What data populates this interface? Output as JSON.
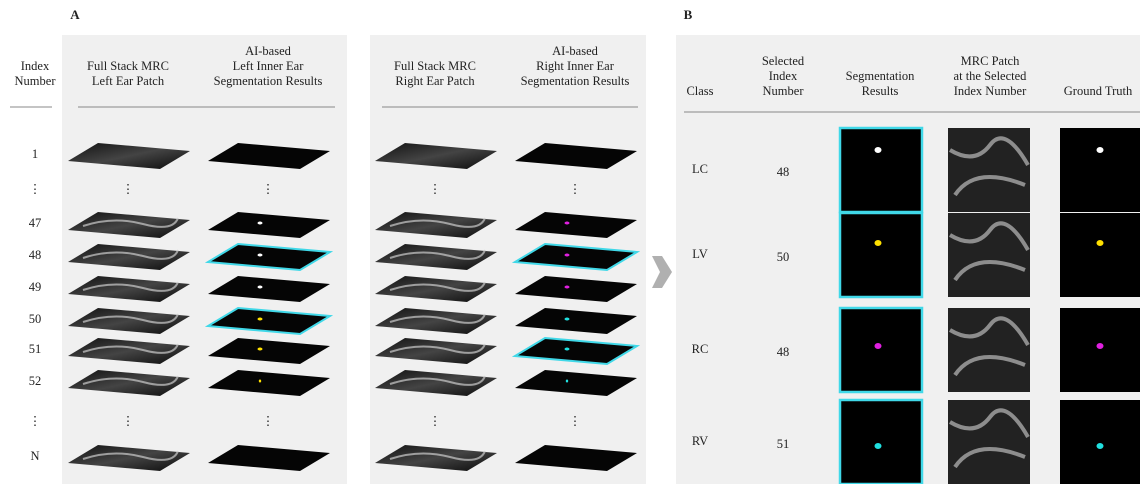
{
  "panel_a": {
    "label": "A",
    "index_header": [
      "Index",
      "Number"
    ],
    "columns": [
      {
        "header": [
          "Full Stack MRC",
          "Left Ear Patch"
        ]
      },
      {
        "header": [
          "AI-based",
          "Left Inner Ear",
          "Segmentation Results"
        ]
      },
      {
        "header": [
          "Full Stack MRC",
          "Right Ear Patch"
        ]
      },
      {
        "header": [
          "AI-based",
          "Right Inner Ear",
          "Segmentation Results"
        ]
      }
    ],
    "index_labels": [
      "1",
      "⋮",
      "47",
      "48",
      "49",
      "50",
      "51",
      "52",
      "⋮",
      "N"
    ]
  },
  "panel_b": {
    "label": "B",
    "headers": [
      [
        "Class"
      ],
      [
        "Selected",
        "Index",
        "Number"
      ],
      [
        "Segmentation",
        "Results"
      ],
      [
        "MRC Patch",
        "at the Selected",
        "Index Number"
      ],
      [
        "Ground Truth"
      ]
    ],
    "rows": [
      {
        "class": "LC",
        "index": 48
      },
      {
        "class": "LV",
        "index": 50
      },
      {
        "class": "RC",
        "index": 48
      },
      {
        "class": "RV",
        "index": 51
      }
    ]
  }
}
